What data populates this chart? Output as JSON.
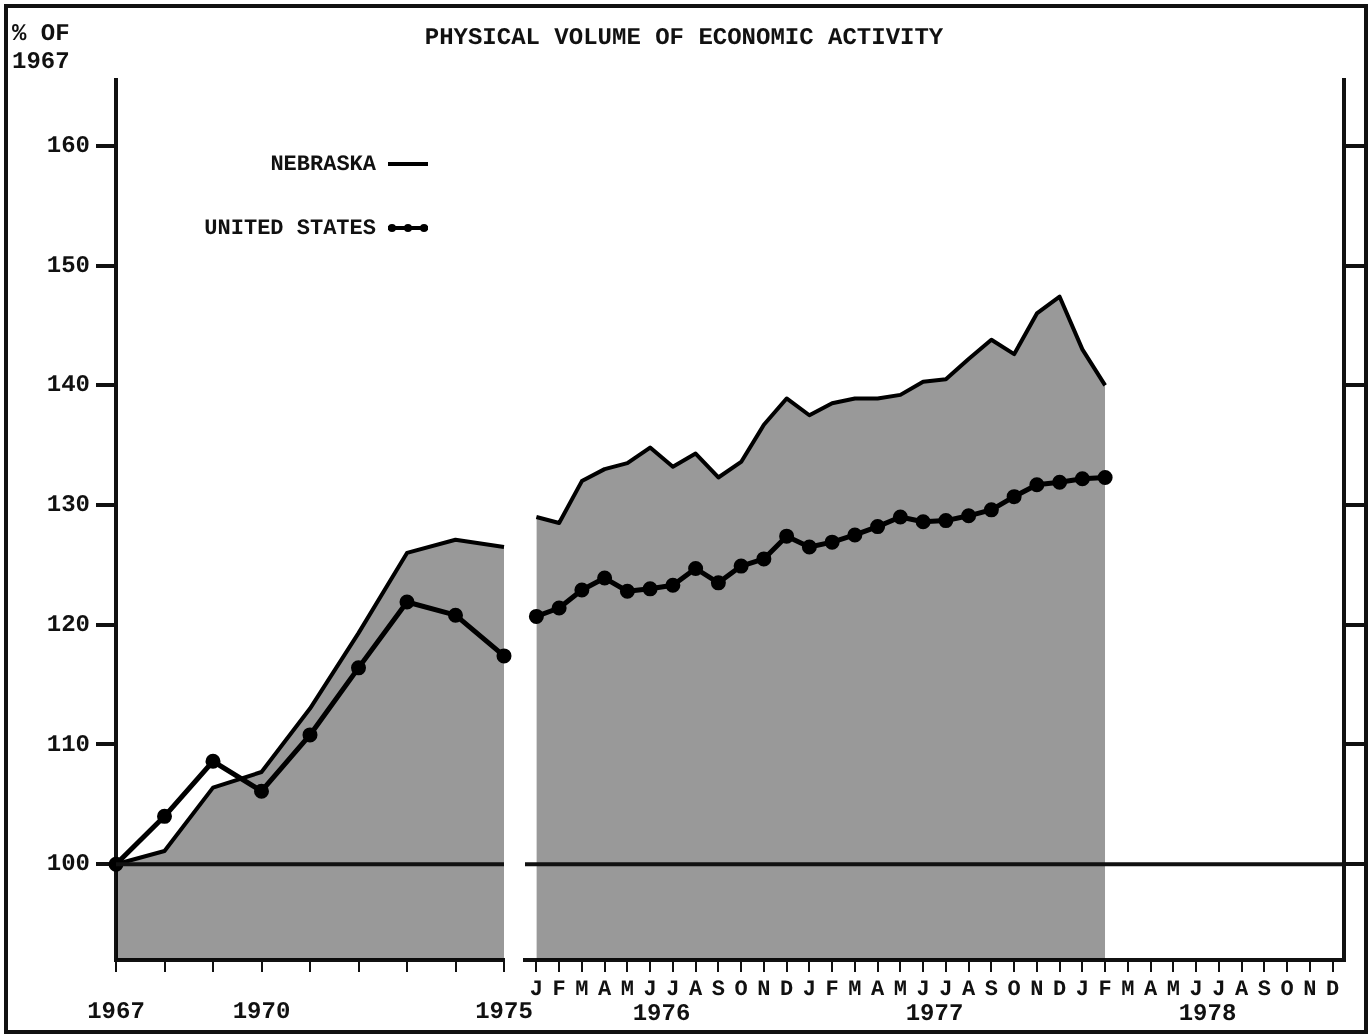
{
  "chart_data": [
    {
      "type": "line",
      "title": "PHYSICAL VOLUME OF ECONOMIC ACTIVITY",
      "ylabel": "% OF 1967",
      "categories": [
        "1967",
        null,
        null,
        "1970",
        null,
        null,
        null,
        null,
        "1975"
      ],
      "series": [
        {
          "name": "NEBRASKA",
          "type": "area",
          "color": "#000000",
          "marker": "none",
          "values": [
            100,
            101.1,
            106.4,
            107.7,
            113,
            119.3,
            126,
            127.1,
            126.5
          ]
        },
        {
          "name": "UNITED STATES",
          "type": "line",
          "color": "#000000",
          "marker": "circle",
          "values": [
            100,
            104,
            108.6,
            106.1,
            110.8,
            116.4,
            121.9,
            120.8,
            117.4
          ]
        }
      ],
      "ylim": [
        92,
        165.5
      ],
      "yticks": [
        100,
        110,
        120,
        130,
        140,
        150,
        160
      ],
      "ref_lines": [
        {
          "axis": "y",
          "value": 100
        }
      ],
      "legend": "top",
      "grid": false
    },
    {
      "type": "line",
      "categories": [
        "J",
        "F",
        "M",
        "A",
        "M",
        "J",
        "J",
        "A",
        "S",
        "O",
        "N",
        "D",
        "J",
        "F",
        "M",
        "A",
        "M",
        "J",
        "J",
        "A",
        "S",
        "O",
        "N",
        "D",
        "J",
        "F",
        "M",
        "A",
        "M",
        "J",
        "J",
        "A",
        "S",
        "O",
        "N",
        "D"
      ],
      "series": [
        {
          "type": "area",
          "color": "#000000",
          "marker": "none",
          "values": [
            129,
            128.5,
            132,
            133,
            133.5,
            134.8,
            133.2,
            134.3,
            132.3,
            133.6,
            136.7,
            138.9,
            137.5,
            138.5,
            138.9,
            138.9,
            139.2,
            140.3,
            140.5,
            142.2,
            143.8,
            142.6,
            146,
            147.4,
            143,
            140,
            null,
            null,
            null,
            null,
            null,
            null,
            null,
            null,
            null,
            null
          ]
        },
        {
          "type": "line",
          "color": "#000000",
          "marker": "circle",
          "values": [
            120.7,
            121.4,
            122.9,
            123.9,
            122.8,
            123,
            123.3,
            124.7,
            123.5,
            124.9,
            125.5,
            127.4,
            126.5,
            126.9,
            127.5,
            128.2,
            129,
            128.6,
            128.7,
            129.1,
            129.6,
            130.7,
            131.7,
            131.9,
            132.2,
            132.3,
            null,
            null,
            null,
            null,
            null,
            null,
            null,
            null,
            null,
            null
          ]
        }
      ],
      "ylim": [
        92,
        165.5
      ],
      "yticks": [
        100,
        110,
        120,
        130,
        140,
        150,
        160
      ],
      "ref_lines": [
        {
          "axis": "y",
          "value": 100
        }
      ],
      "annotations": [
        "1976",
        "1977",
        "1978"
      ],
      "tick_labels": "x",
      "grid": false
    }
  ]
}
